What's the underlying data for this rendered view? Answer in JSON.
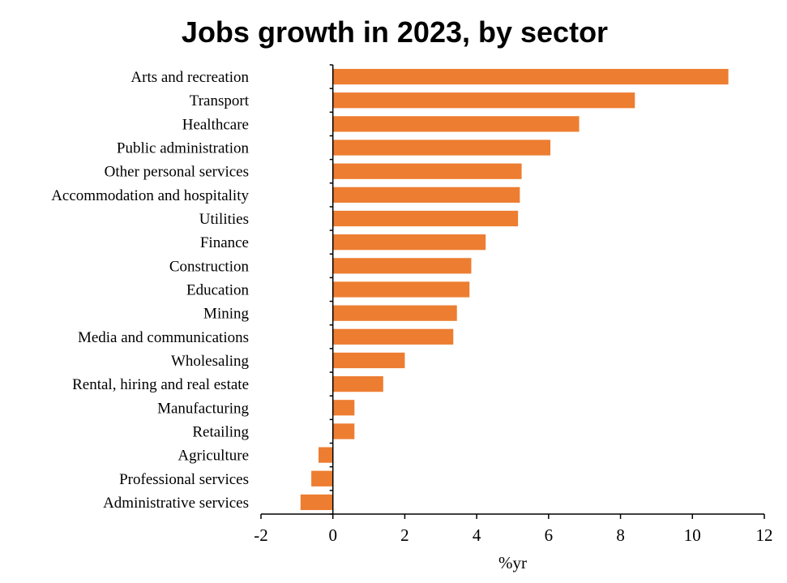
{
  "chart_data": {
    "type": "bar",
    "orientation": "horizontal",
    "title": "Jobs growth in 2023, by sector",
    "xlabel": "%yr",
    "ylabel": "",
    "xlim": [
      -2,
      12
    ],
    "xticks": [
      -2,
      0,
      2,
      4,
      6,
      8,
      10,
      12
    ],
    "grid": false,
    "bar_color": "#ED7D31",
    "categories": [
      "Arts and recreation",
      "Transport",
      "Healthcare",
      "Public administration",
      "Other personal services",
      "Accommodation and hospitality",
      "Utilities",
      "Finance",
      "Construction",
      "Education",
      "Mining",
      "Media and communications",
      "Wholesaling",
      "Rental, hiring and real estate",
      "Manufacturing",
      "Retailing",
      "Agriculture",
      "Professional services",
      "Administrative services"
    ],
    "values": [
      11.0,
      8.4,
      6.85,
      6.05,
      5.25,
      5.2,
      5.15,
      4.25,
      3.85,
      3.8,
      3.45,
      3.35,
      2.0,
      1.4,
      0.6,
      0.6,
      -0.4,
      -0.6,
      -0.9
    ]
  }
}
